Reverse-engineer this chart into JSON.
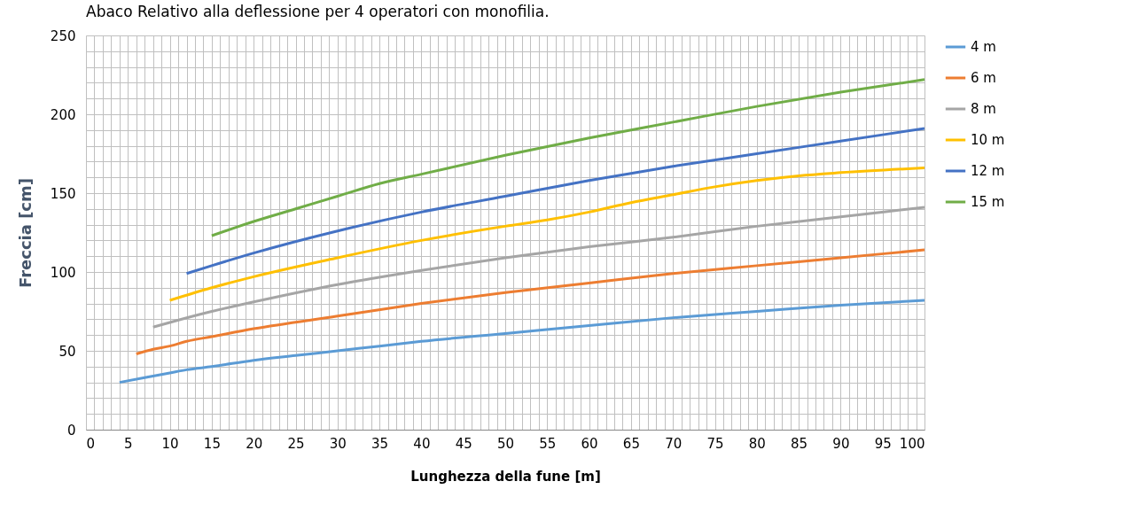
{
  "chart_data": {
    "type": "line",
    "title": "Abaco Relativo alla deflessione per 4 operatori con monofilia.",
    "xlabel": "Lunghezza della fune [m]",
    "ylabel": "Freccia [cm]",
    "xlim": [
      0,
      100
    ],
    "ylim": [
      0,
      250
    ],
    "xticks": [
      0,
      {
        "value": 1,
        "label": null
      },
      {
        "value": 2,
        "label": null
      },
      {
        "value": 3,
        "label": null
      },
      {
        "value": 4,
        "label": null
      },
      5,
      {
        "value": 6,
        "label": null
      },
      {
        "value": 7,
        "label": null
      },
      {
        "value": 8,
        "label": null
      },
      {
        "value": 9,
        "label": null
      },
      10,
      {
        "value": 11,
        "label": null
      },
      {
        "value": 12,
        "label": null
      },
      {
        "value": 13,
        "label": null
      },
      {
        "value": 14,
        "label": null
      },
      15,
      {
        "value": 16,
        "label": null
      },
      {
        "value": 17,
        "label": null
      },
      {
        "value": 18,
        "label": null
      },
      {
        "value": 19,
        "label": null
      },
      20,
      {
        "value": 21,
        "label": null
      },
      {
        "value": 22,
        "label": null
      },
      {
        "value": 23,
        "label": null
      },
      {
        "value": 24,
        "label": null
      },
      25,
      {
        "value": 26,
        "label": null
      },
      {
        "value": 27,
        "label": null
      },
      {
        "value": 28,
        "label": null
      },
      {
        "value": 29,
        "label": null
      },
      30,
      {
        "value": 31,
        "label": null
      },
      {
        "value": 32,
        "label": null
      },
      {
        "value": 33,
        "label": null
      },
      {
        "value": 34,
        "label": null
      },
      35,
      {
        "value": 36,
        "label": null
      },
      {
        "value": 37,
        "label": null
      },
      {
        "value": 38,
        "label": null
      },
      {
        "value": 39,
        "label": null
      },
      40,
      {
        "value": 41,
        "label": null
      },
      {
        "value": 42,
        "label": null
      },
      {
        "value": 43,
        "label": null
      },
      {
        "value": 44,
        "label": null
      },
      45,
      {
        "value": 46,
        "label": null
      },
      {
        "value": 47,
        "label": null
      },
      {
        "value": 48,
        "label": null
      },
      {
        "value": 49,
        "label": null
      },
      50,
      {
        "value": 51,
        "label": null
      },
      {
        "value": 52,
        "label": null
      },
      {
        "value": 53,
        "label": null
      },
      {
        "value": 54,
        "label": null
      },
      55,
      {
        "value": 56,
        "label": null
      },
      {
        "value": 57,
        "label": null
      },
      {
        "value": 58,
        "label": null
      },
      {
        "value": 59,
        "label": null
      },
      60,
      {
        "value": 61,
        "label": null
      },
      {
        "value": 62,
        "label": null
      },
      {
        "value": 63,
        "label": null
      },
      {
        "value": 64,
        "label": null
      },
      65,
      {
        "value": 66,
        "label": null
      },
      {
        "value": 67,
        "label": null
      },
      {
        "value": 68,
        "label": null
      },
      {
        "value": 69,
        "label": null
      },
      70,
      {
        "value": 71,
        "label": null
      },
      {
        "value": 72,
        "label": null
      },
      {
        "value": 73,
        "label": null
      },
      {
        "value": 74,
        "label": null
      },
      75,
      {
        "value": 76,
        "label": null
      },
      {
        "value": 77,
        "label": null
      },
      {
        "value": 78,
        "label": null
      },
      {
        "value": 79,
        "label": null
      },
      80,
      {
        "value": 81,
        "label": null
      },
      {
        "value": 82,
        "label": null
      },
      {
        "value": 83,
        "label": null
      },
      {
        "value": 84,
        "label": null
      },
      85,
      {
        "value": 86,
        "label": null
      },
      {
        "value": 87,
        "label": null
      },
      {
        "value": 88,
        "label": null
      },
      {
        "value": 89,
        "label": null
      },
      90,
      {
        "value": 91,
        "label": null
      },
      {
        "value": 92,
        "label": null
      },
      {
        "value": 93,
        "label": null
      },
      {
        "value": 94,
        "label": null
      },
      95,
      {
        "value": 96,
        "label": null
      },
      {
        "value": 97,
        "label": null
      },
      {
        "value": 98,
        "label": null
      },
      {
        "value": 99,
        "label": null
      },
      100
    ],
    "yticks": [
      0,
      {
        "value": 10,
        "label": null
      },
      {
        "value": 20,
        "label": null
      },
      {
        "value": 30,
        "label": null
      },
      {
        "value": 40,
        "label": null
      },
      50,
      {
        "value": 60,
        "label": null
      },
      {
        "value": 70,
        "label": null
      },
      {
        "value": 80,
        "label": null
      },
      {
        "value": 90,
        "label": null
      },
      100,
      {
        "value": 110,
        "label": null
      },
      {
        "value": 120,
        "label": null
      },
      {
        "value": 130,
        "label": null
      },
      {
        "value": 140,
        "label": null
      },
      150,
      {
        "value": 160,
        "label": null
      },
      {
        "value": 170,
        "label": null
      },
      {
        "value": 180,
        "label": null
      },
      {
        "value": 190,
        "label": null
      },
      200,
      {
        "value": 210,
        "label": null
      },
      {
        "value": 220,
        "label": null
      },
      {
        "value": 230,
        "label": null
      },
      {
        "value": 240,
        "label": null
      },
      250
    ],
    "grid": true,
    "legend": "right",
    "marker": "none",
    "line_style": "solid",
    "series": [
      {
        "name": "4 m",
        "color": "#5b9bd5",
        "x": [
          4,
          10,
          12,
          15,
          20,
          25,
          30,
          35,
          40,
          50,
          60,
          70,
          80,
          90,
          100
        ],
        "values": [
          30,
          36,
          38,
          40,
          44,
          47,
          50,
          53,
          56,
          61,
          66,
          71,
          75,
          79,
          82
        ]
      },
      {
        "name": "6 m",
        "color": "#ed7d31",
        "x": [
          6,
          8,
          10,
          12,
          15,
          20,
          30,
          40,
          50,
          60,
          70,
          80,
          90,
          100
        ],
        "values": [
          48,
          51,
          53,
          56,
          59,
          64,
          72,
          80,
          87,
          93,
          99,
          104,
          109,
          114
        ]
      },
      {
        "name": "8 m",
        "color": "#a5a5a5",
        "x": [
          8,
          10,
          15,
          20,
          30,
          40,
          50,
          60,
          70,
          80,
          90,
          100
        ],
        "values": [
          65,
          68,
          75,
          81,
          92,
          101,
          109,
          116,
          122,
          129,
          135,
          141
        ]
      },
      {
        "name": "10 m",
        "color": "#ffc000",
        "x": [
          10,
          15,
          20,
          30,
          40,
          50,
          55,
          60,
          65,
          70,
          75,
          80,
          85,
          90,
          100
        ],
        "values": [
          82,
          90,
          97,
          109,
          120,
          129,
          133,
          138,
          144,
          149,
          154,
          158,
          161,
          163,
          166
        ]
      },
      {
        "name": "12 m",
        "color": "#4472c4",
        "x": [
          12,
          15,
          20,
          30,
          40,
          50,
          60,
          70,
          80,
          90,
          100
        ],
        "values": [
          99,
          104,
          112,
          126,
          138,
          148,
          158,
          167,
          175,
          183,
          191
        ]
      },
      {
        "name": "15 m",
        "color": "#70ad47",
        "x": [
          15,
          20,
          25,
          30,
          35,
          40,
          50,
          60,
          70,
          80,
          90,
          100
        ],
        "values": [
          123,
          132,
          140,
          148,
          156,
          162,
          174,
          185,
          195,
          205,
          214,
          222
        ]
      }
    ]
  }
}
